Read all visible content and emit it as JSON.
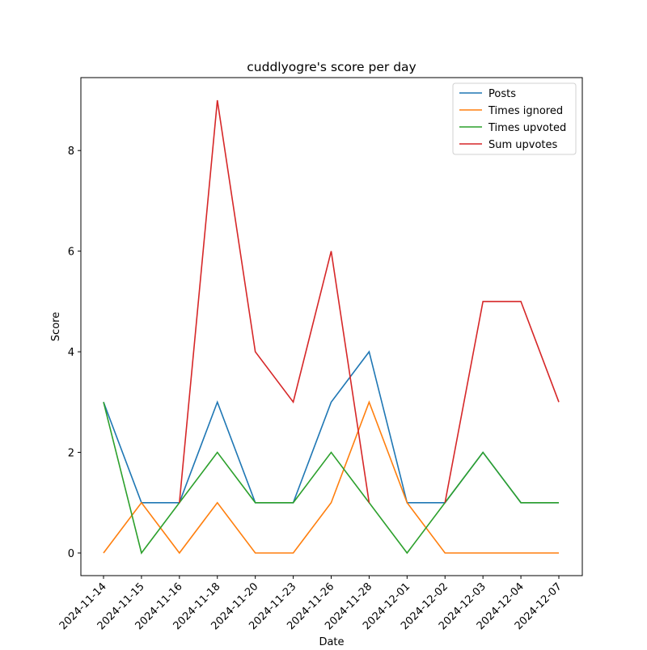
{
  "chart_data": {
    "type": "line",
    "title": "cuddlyogre's score per day",
    "x_label": "Date",
    "y_label": "Score",
    "categories": [
      "2024-11-14",
      "2024-11-15",
      "2024-11-16",
      "2024-11-18",
      "2024-11-20",
      "2024-11-23",
      "2024-11-26",
      "2024-11-28",
      "2024-12-01",
      "2024-12-02",
      "2024-12-03",
      "2024-12-04",
      "2024-12-07"
    ],
    "series": [
      {
        "name": "Posts",
        "color": "#1f77b4",
        "values": [
          3,
          1,
          1,
          3,
          1,
          1,
          3,
          4,
          1,
          1,
          2,
          1,
          1
        ]
      },
      {
        "name": "Times ignored",
        "color": "#ff7f0e",
        "values": [
          0,
          1,
          0,
          1,
          0,
          0,
          1,
          3,
          1,
          0,
          0,
          0,
          0
        ]
      },
      {
        "name": "Times upvoted",
        "color": "#2ca02c",
        "values": [
          3,
          0,
          1,
          2,
          1,
          1,
          2,
          1,
          0,
          1,
          2,
          1,
          1
        ]
      },
      {
        "name": "Sum upvotes",
        "color": "#d62728",
        "values": [
          null,
          null,
          1,
          9,
          4,
          3,
          6,
          1,
          null,
          1,
          5,
          5,
          3
        ]
      }
    ],
    "ylim": [
      -0.45,
      9.45
    ],
    "yticks": [
      0,
      2,
      4,
      6,
      8
    ],
    "legend": "upper right"
  }
}
